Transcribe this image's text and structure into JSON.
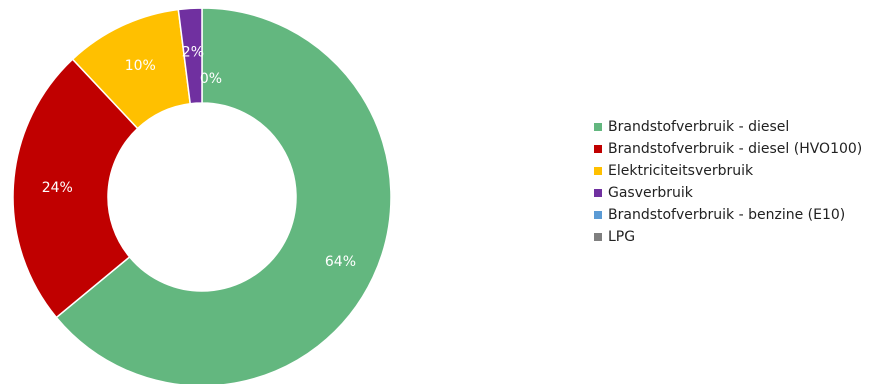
{
  "chart_data": {
    "type": "pie",
    "variant": "donut",
    "title": "",
    "legend_position": "right",
    "slices": [
      {
        "name": "Brandstofverbruik - diesel",
        "value": 64,
        "label": "64%",
        "color": "#63b77f"
      },
      {
        "name": "Brandstofverbruik - diesel (HVO100)",
        "value": 24,
        "label": "24%",
        "color": "#c00000"
      },
      {
        "name": "Elektriciteitsverbruik",
        "value": 10,
        "label": "10%",
        "color": "#ffc000"
      },
      {
        "name": "Gasverbruik",
        "value": 2,
        "label": "2%",
        "color": "#7030a0"
      },
      {
        "name": "Brandstofverbruik - benzine (E10)",
        "value": 0,
        "label": "0%",
        "color": "#5b9bd5"
      },
      {
        "name": "LPG",
        "value": 0,
        "label": "",
        "color": "#7f7f7f"
      }
    ]
  }
}
